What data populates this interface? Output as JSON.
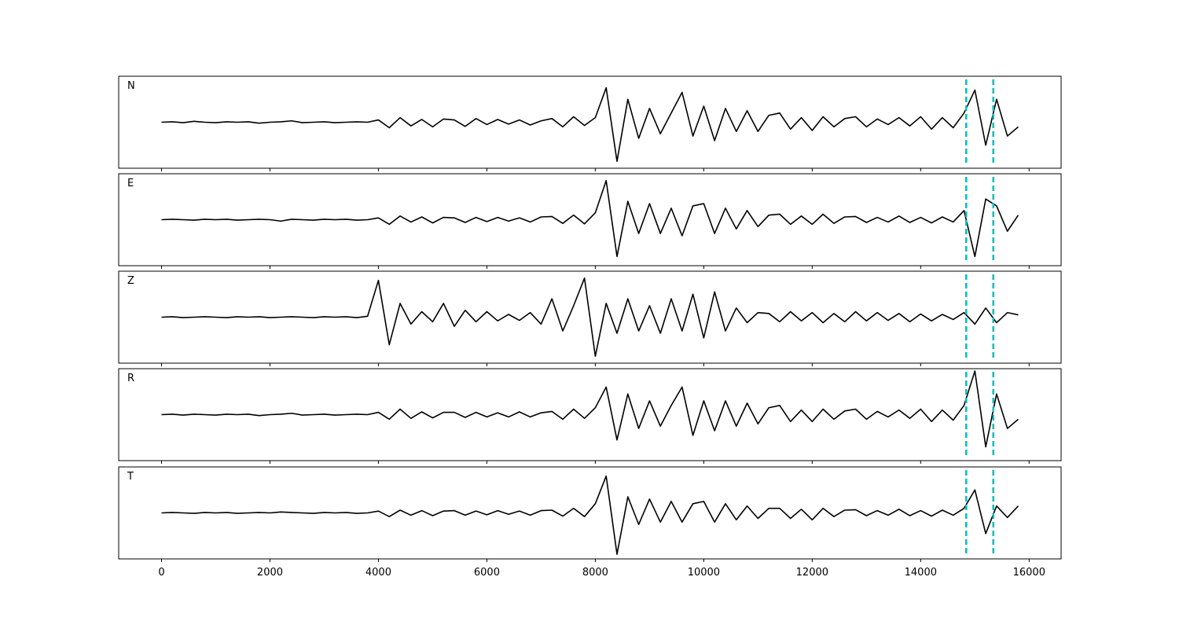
{
  "chart_data": {
    "type": "line",
    "subplots": true,
    "color": "#000000",
    "vline_color": "#00bfbf",
    "vline_style": "dashed",
    "xlim": [
      -790,
      16590
    ],
    "xticks": [
      0,
      2000,
      4000,
      6000,
      8000,
      10000,
      12000,
      14000,
      16000
    ],
    "ylim": [
      -1,
      1
    ],
    "vlines": [
      14840,
      15340
    ],
    "x": [
      0,
      200,
      400,
      600,
      800,
      1000,
      1200,
      1400,
      1600,
      1800,
      2000,
      2200,
      2400,
      2600,
      2800,
      3000,
      3200,
      3400,
      3600,
      3800,
      4000,
      4200,
      4400,
      4600,
      4800,
      5000,
      5200,
      5400,
      5600,
      5800,
      6000,
      6200,
      6400,
      6600,
      6800,
      7000,
      7200,
      7400,
      7600,
      7800,
      8000,
      8200,
      8400,
      8600,
      8800,
      9000,
      9200,
      9400,
      9600,
      9800,
      10000,
      10200,
      10400,
      10600,
      10800,
      11000,
      11200,
      11400,
      11600,
      11800,
      12000,
      12200,
      12400,
      12600,
      12800,
      13000,
      13200,
      13400,
      13600,
      13800,
      14000,
      14200,
      14400,
      14600,
      14800,
      15000,
      15200,
      15400,
      15600,
      15800
    ],
    "series": [
      {
        "name": "N",
        "values": [
          0,
          0.01,
          -0.01,
          0.02,
          0,
          -0.01,
          0.01,
          0,
          0.01,
          -0.02,
          0,
          0.01,
          0.03,
          -0.01,
          0,
          0.01,
          -0.01,
          0,
          0.01,
          0,
          0.05,
          -0.12,
          0.1,
          -0.08,
          0.06,
          -0.1,
          0.07,
          0.05,
          -0.09,
          0.08,
          -0.05,
          0.06,
          -0.04,
          0.05,
          -0.06,
          0.03,
          0.08,
          -0.1,
          0.12,
          -0.07,
          0.1,
          0.75,
          -0.85,
          0.5,
          -0.35,
          0.3,
          -0.25,
          0.2,
          0.65,
          -0.3,
          0.35,
          -0.4,
          0.3,
          -0.2,
          0.25,
          -0.2,
          0.15,
          0.2,
          -0.15,
          0.1,
          -0.18,
          0.12,
          -0.1,
          0.08,
          0.12,
          -0.1,
          0.07,
          -0.05,
          0.1,
          -0.08,
          0.12,
          -0.15,
          0.1,
          -0.12,
          0.2,
          0.7,
          -0.5,
          0.5,
          -0.3,
          -0.1
        ]
      },
      {
        "name": "E",
        "values": [
          0,
          0.01,
          0,
          -0.01,
          0.01,
          0,
          0.01,
          -0.01,
          0,
          0.01,
          0,
          -0.03,
          0.01,
          0,
          -0.01,
          0.01,
          0,
          0.01,
          -0.01,
          0,
          0.04,
          -0.1,
          0.08,
          -0.05,
          0.06,
          -0.07,
          0.05,
          0.04,
          -0.06,
          0.05,
          -0.04,
          0.05,
          -0.03,
          0.04,
          -0.05,
          0.06,
          0.07,
          -0.08,
          0.1,
          -0.09,
          0.15,
          0.85,
          -0.8,
          0.4,
          -0.3,
          0.35,
          -0.3,
          0.25,
          -0.35,
          0.3,
          0.35,
          -0.3,
          0.25,
          -0.2,
          0.2,
          -0.15,
          0.1,
          0.12,
          -0.1,
          0.08,
          -0.1,
          0.12,
          -0.08,
          0.06,
          0.07,
          -0.06,
          0.05,
          -0.05,
          0.08,
          -0.06,
          0.05,
          -0.07,
          0.06,
          -0.05,
          0.2,
          -0.8,
          0.45,
          0.3,
          -0.25,
          0.1
        ]
      },
      {
        "name": "Z",
        "values": [
          0,
          0.01,
          -0.01,
          0,
          0.01,
          0,
          -0.01,
          0.01,
          0,
          0.01,
          -0.01,
          0,
          0.01,
          0,
          -0.01,
          0.01,
          0,
          0.01,
          -0.01,
          0.02,
          0.8,
          -0.6,
          0.3,
          -0.15,
          0.12,
          -0.1,
          0.3,
          -0.2,
          0.15,
          -0.1,
          0.12,
          -0.08,
          0.06,
          -0.07,
          0.1,
          -0.15,
          0.4,
          -0.3,
          0.25,
          0.85,
          -0.85,
          0.3,
          -0.35,
          0.4,
          -0.3,
          0.25,
          -0.35,
          0.4,
          -0.3,
          0.5,
          -0.45,
          0.55,
          -0.3,
          0.2,
          -0.12,
          0.1,
          0.08,
          -0.1,
          0.12,
          -0.08,
          0.1,
          -0.12,
          0.08,
          -0.1,
          0.12,
          -0.08,
          0.1,
          -0.07,
          0.08,
          -0.1,
          0.07,
          -0.08,
          0.06,
          -0.05,
          0.1,
          -0.15,
          0.2,
          -0.12,
          0.1,
          0.05
        ]
      },
      {
        "name": "R",
        "values": [
          0,
          0.01,
          -0.01,
          0.01,
          0,
          -0.01,
          0.01,
          0,
          0.01,
          -0.02,
          0,
          0.01,
          0.03,
          -0.01,
          0,
          0.01,
          -0.01,
          0,
          0.01,
          0,
          0.05,
          -0.1,
          0.12,
          -0.08,
          0.06,
          -0.07,
          0.05,
          0.05,
          -0.06,
          0.05,
          -0.05,
          0.04,
          -0.05,
          0.06,
          -0.05,
          0.04,
          0.07,
          -0.1,
          0.12,
          -0.08,
          0.15,
          0.6,
          -0.55,
          0.45,
          -0.3,
          0.3,
          -0.25,
          0.2,
          0.6,
          -0.45,
          0.3,
          -0.35,
          0.3,
          -0.25,
          0.25,
          -0.2,
          0.15,
          0.2,
          -0.15,
          0.1,
          -0.15,
          0.12,
          -0.1,
          0.08,
          0.12,
          -0.1,
          0.07,
          -0.05,
          0.1,
          -0.08,
          0.12,
          -0.15,
          0.1,
          -0.12,
          0.2,
          0.95,
          -0.7,
          0.45,
          -0.3,
          -0.1
        ]
      },
      {
        "name": "T",
        "values": [
          0,
          0.01,
          0,
          -0.01,
          0.01,
          0,
          0.01,
          -0.01,
          0,
          0.01,
          0,
          0.02,
          0.01,
          0,
          -0.01,
          0.01,
          0,
          0.01,
          -0.01,
          0,
          0.04,
          -0.08,
          0.06,
          -0.05,
          0.05,
          -0.06,
          0.04,
          0.05,
          -0.05,
          0.04,
          -0.04,
          0.05,
          -0.03,
          0.04,
          -0.05,
          0.05,
          0.06,
          -0.07,
          0.1,
          -0.08,
          0.2,
          0.8,
          -0.9,
          0.35,
          -0.25,
          0.3,
          -0.2,
          0.25,
          -0.2,
          0.2,
          0.25,
          -0.2,
          0.2,
          -0.15,
          0.15,
          -0.12,
          0.1,
          0.1,
          -0.12,
          0.08,
          -0.15,
          0.1,
          -0.08,
          0.06,
          0.07,
          -0.06,
          0.05,
          -0.05,
          0.08,
          -0.06,
          0.05,
          -0.07,
          0.06,
          -0.05,
          0.1,
          0.5,
          -0.45,
          0.15,
          -0.1,
          0.15
        ]
      }
    ]
  }
}
